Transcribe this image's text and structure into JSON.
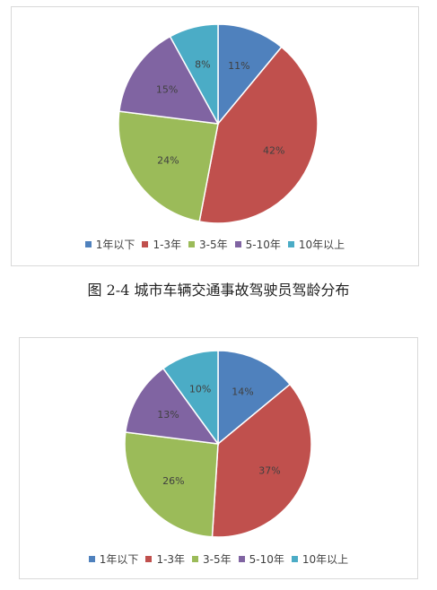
{
  "caption": "图 2-4  城市车辆交通事故驾驶员驾龄分布",
  "legend_labels": [
    "1年以下",
    "1-3年",
    "3-5年",
    "5-10年",
    "10年以上"
  ],
  "colors": [
    "#4f81bd",
    "#c0504d",
    "#9bbb59",
    "#8064a2",
    "#4bacc6"
  ],
  "chart_data": [
    {
      "type": "pie",
      "categories": [
        "1年以下",
        "1-3年",
        "3-5年",
        "5-10年",
        "10年以上"
      ],
      "values": [
        11,
        42,
        24,
        15,
        8
      ],
      "labels": [
        "11%",
        "42%",
        "24%",
        "15%",
        "8%"
      ],
      "legend_position": "bottom"
    },
    {
      "type": "pie",
      "categories": [
        "1年以下",
        "1-3年",
        "3-5年",
        "5-10年",
        "10年以上"
      ],
      "values": [
        14,
        37,
        26,
        13,
        10
      ],
      "labels": [
        "14%",
        "37%",
        "26%",
        "13%",
        "10%"
      ],
      "legend_position": "bottom"
    }
  ]
}
